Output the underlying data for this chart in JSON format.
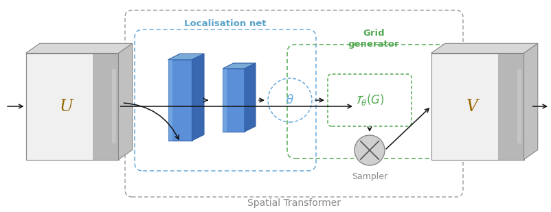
{
  "fig_width": 8.02,
  "fig_height": 3.09,
  "dpi": 100,
  "bg_color": "#ffffff",
  "title_text": "Spatial Transformer",
  "title_color": "#888888",
  "localisation_label": "Localisation net",
  "localisation_color": "#5ba3c9",
  "grid_gen_label": "Grid\ngenerator",
  "grid_gen_color": "#55aa55",
  "sampler_label": "Sampler",
  "sampler_color": "#888888",
  "theta_label": "θ",
  "U_label": "U",
  "V_label": "V",
  "block_color_main": "#6090d8",
  "block_color_left": "#8ab0e8",
  "block_color_right": "#4070b8",
  "block_color_top": "#5080c8",
  "outer_dash_color": "#999999",
  "loc_dash_color": "#66aadd",
  "grid_dash_color": "#55aa55",
  "arrow_color": "#111111",
  "U_italic_color": "#996600",
  "V_italic_color": "#996600"
}
